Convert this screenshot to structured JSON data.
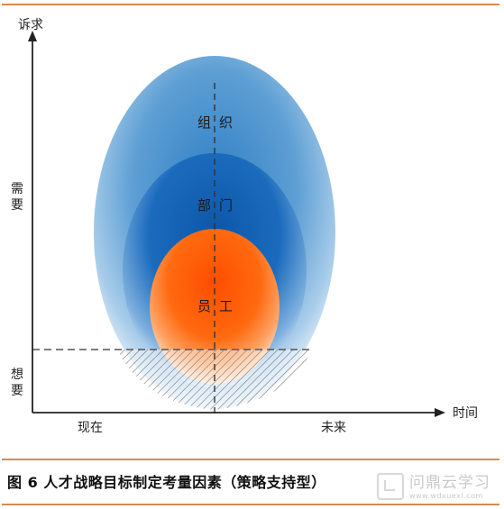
{
  "axes": {
    "y_label": "诉求",
    "x_label": "时间",
    "y_upper": "需要",
    "y_lower": "想要",
    "x_left": "现在",
    "x_right": "未来"
  },
  "layers": {
    "outer": {
      "left": "组",
      "right": "织",
      "color": "#3d8ccb"
    },
    "middle": {
      "left": "部",
      "right": "门",
      "color": "#1565b8"
    },
    "inner": {
      "left": "员",
      "right": "工",
      "color": "#ff5a00"
    }
  },
  "caption": "图 6 人才战略目标制定考量因素（策略支持型）",
  "watermark": {
    "main": "问鼎云学习",
    "url": "www.wdxuexi.com"
  },
  "colors": {
    "rule": "#d98a4e",
    "axis": "#222222",
    "dash": "#555555"
  }
}
